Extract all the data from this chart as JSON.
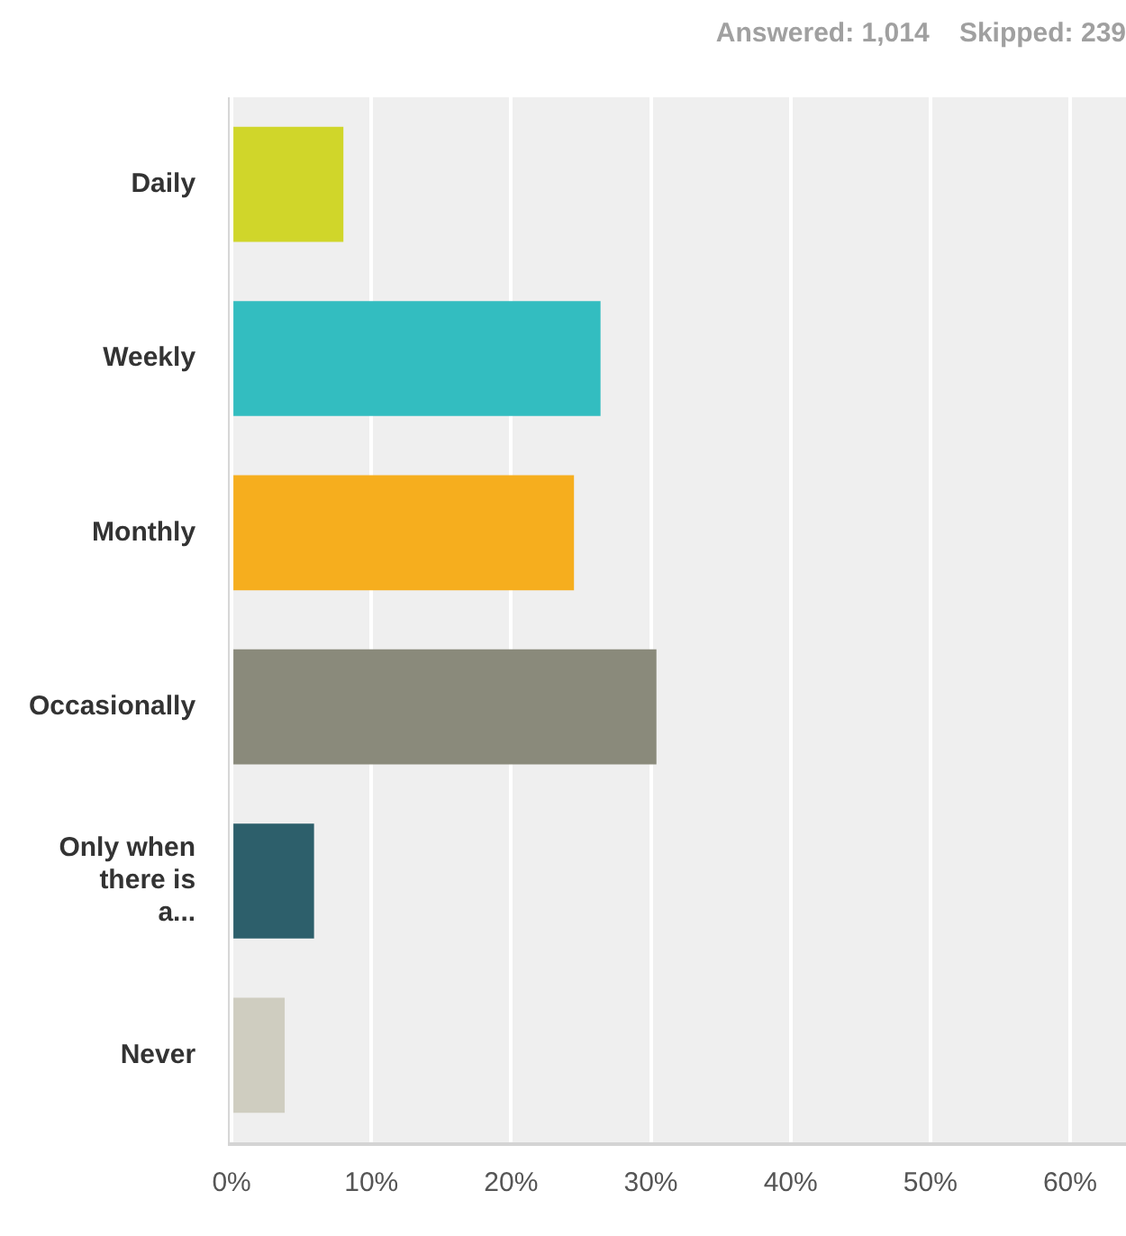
{
  "chart_data": {
    "type": "bar",
    "orientation": "horizontal",
    "title": "Answered: 1,014    Skipped: 239",
    "categories": [
      "Daily",
      "Weekly",
      "Monthly",
      "Occasionally",
      "Only when there is a...",
      "Never"
    ],
    "values": [
      8.0,
      26.4,
      24.5,
      30.4,
      5.9,
      3.8
    ],
    "colors": [
      "#d0d62a",
      "#33bdc0",
      "#f6ae1e",
      "#8a8a7b",
      "#2d5f6b",
      "#cfcdc0"
    ],
    "xlim": [
      0,
      64
    ],
    "xticks": [
      {
        "value": 0,
        "label": "0%"
      },
      {
        "value": 10,
        "label": "10%"
      },
      {
        "value": 20,
        "label": "20%"
      },
      {
        "value": 30,
        "label": "30%"
      },
      {
        "value": 40,
        "label": "40%"
      },
      {
        "value": 50,
        "label": "50%"
      },
      {
        "value": 60,
        "label": "60%"
      }
    ],
    "grid": "x",
    "legend": false
  }
}
